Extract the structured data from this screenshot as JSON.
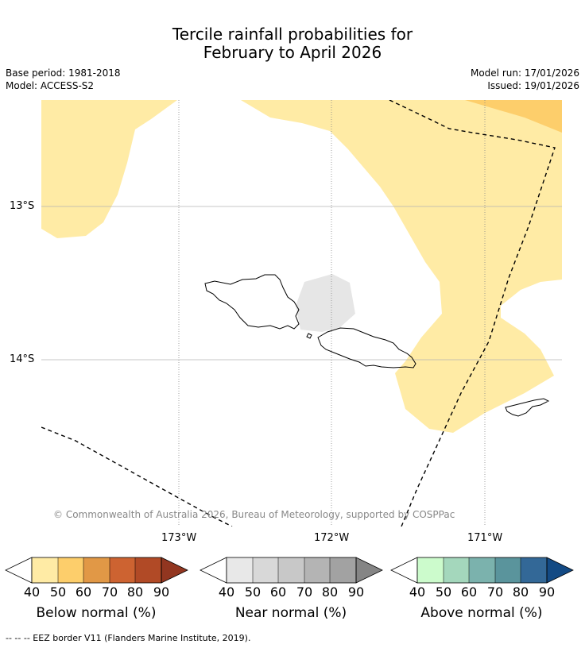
{
  "title_line1": "Tercile rainfall probabilities for",
  "title_line2": "February to April 2026",
  "meta": {
    "base_period": "Base period: 1981-2018",
    "model": "Model: ACCESS-S2",
    "model_run": "Model run: 17/01/2026",
    "issued": "Issued: 19/01/2026"
  },
  "axes": {
    "lat_labels": [
      "13°S",
      "14°S"
    ],
    "lon_labels": [
      "173°W",
      "172°W",
      "171°W"
    ]
  },
  "copyright": "© Commonwealth of Australia 2026, Bureau of Meteorology, supported by COSPPac",
  "colorbars": [
    {
      "label": "Below normal (%)",
      "ticks": [
        "40",
        "50",
        "60",
        "70",
        "80",
        "90"
      ],
      "colors": [
        "#ffeba5",
        "#fdce6b",
        "#e19846",
        "#cd6331",
        "#b14a26",
        "#923620"
      ]
    },
    {
      "label": "Near normal (%)",
      "ticks": [
        "40",
        "50",
        "60",
        "70",
        "80",
        "90"
      ],
      "colors": [
        "#e8e8e8",
        "#d8d8d8",
        "#c8c8c8",
        "#b4b4b4",
        "#a2a2a2",
        "#858585"
      ]
    },
    {
      "label": "Above normal (%)",
      "ticks": [
        "40",
        "50",
        "60",
        "70",
        "80",
        "90"
      ],
      "colors": [
        "#ccfbcc",
        "#a4d7bc",
        "#7bb2ad",
        "#5a949c",
        "#336897",
        "#134a84"
      ]
    }
  ],
  "footnote": "--  --  -- EEZ border V11 (Flanders Marine Institute, 2019)."
}
